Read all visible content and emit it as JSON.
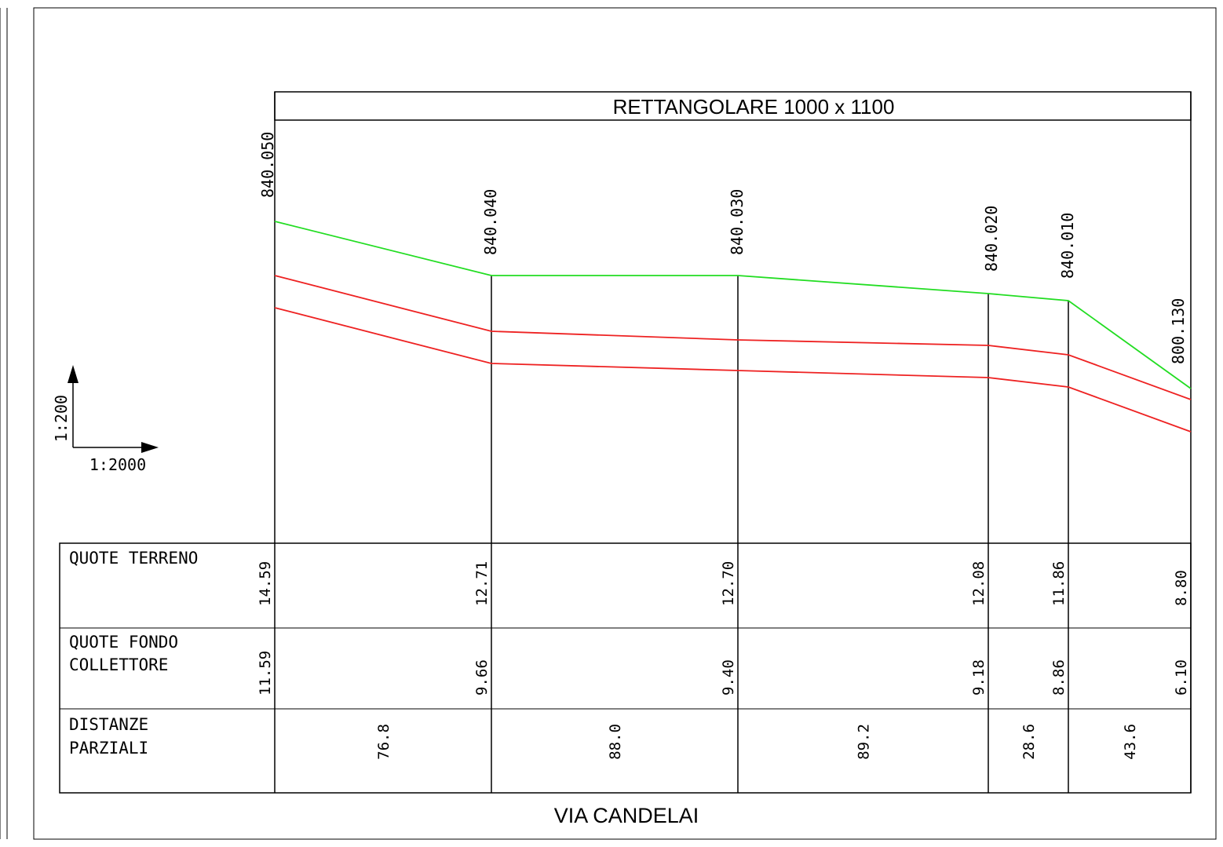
{
  "header": {
    "title": "RETTANGOLARE 1000 x 1100"
  },
  "footer": {
    "street": "VIA CANDELAI"
  },
  "scale": {
    "vertical": "1:200",
    "horizontal": "1:2000"
  },
  "table": {
    "row_labels": {
      "terreno": [
        "QUOTE  TERRENO"
      ],
      "fondo": [
        "QUOTE  FONDO",
        "COLLETTORE"
      ],
      "distanze": [
        "DISTANZE",
        "PARZIALI"
      ]
    }
  },
  "colors": {
    "ground_line": "#22dd22",
    "pipe_lines": "#ee2222",
    "ink": "#000000"
  },
  "chart_data": {
    "type": "line",
    "sections": [
      {
        "id": "840.050",
        "quote_terreno": "14.59",
        "quote_fondo": "11.59"
      },
      {
        "id": "840.040",
        "quote_terreno": "12.71",
        "quote_fondo": "9.66"
      },
      {
        "id": "840.030",
        "quote_terreno": "12.70",
        "quote_fondo": "9.40"
      },
      {
        "id": "840.020",
        "quote_terreno": "12.08",
        "quote_fondo": "9.18"
      },
      {
        "id": "840.010",
        "quote_terreno": "11.86",
        "quote_fondo": "8.86"
      },
      {
        "id": "800.130",
        "quote_terreno": "8.80",
        "quote_fondo": "6.10"
      }
    ],
    "distanze_parziali": [
      "76.8",
      "88.0",
      "89.2",
      "28.6",
      "43.6"
    ],
    "series": [
      {
        "name": "QUOTE  TERRENO",
        "values": [
          14.59,
          12.71,
          12.7,
          12.08,
          11.86,
          8.8
        ]
      },
      {
        "name": "QUOTE  FONDO  COLLETTORE",
        "values": [
          11.59,
          9.66,
          9.4,
          9.18,
          8.86,
          6.1
        ]
      }
    ]
  }
}
